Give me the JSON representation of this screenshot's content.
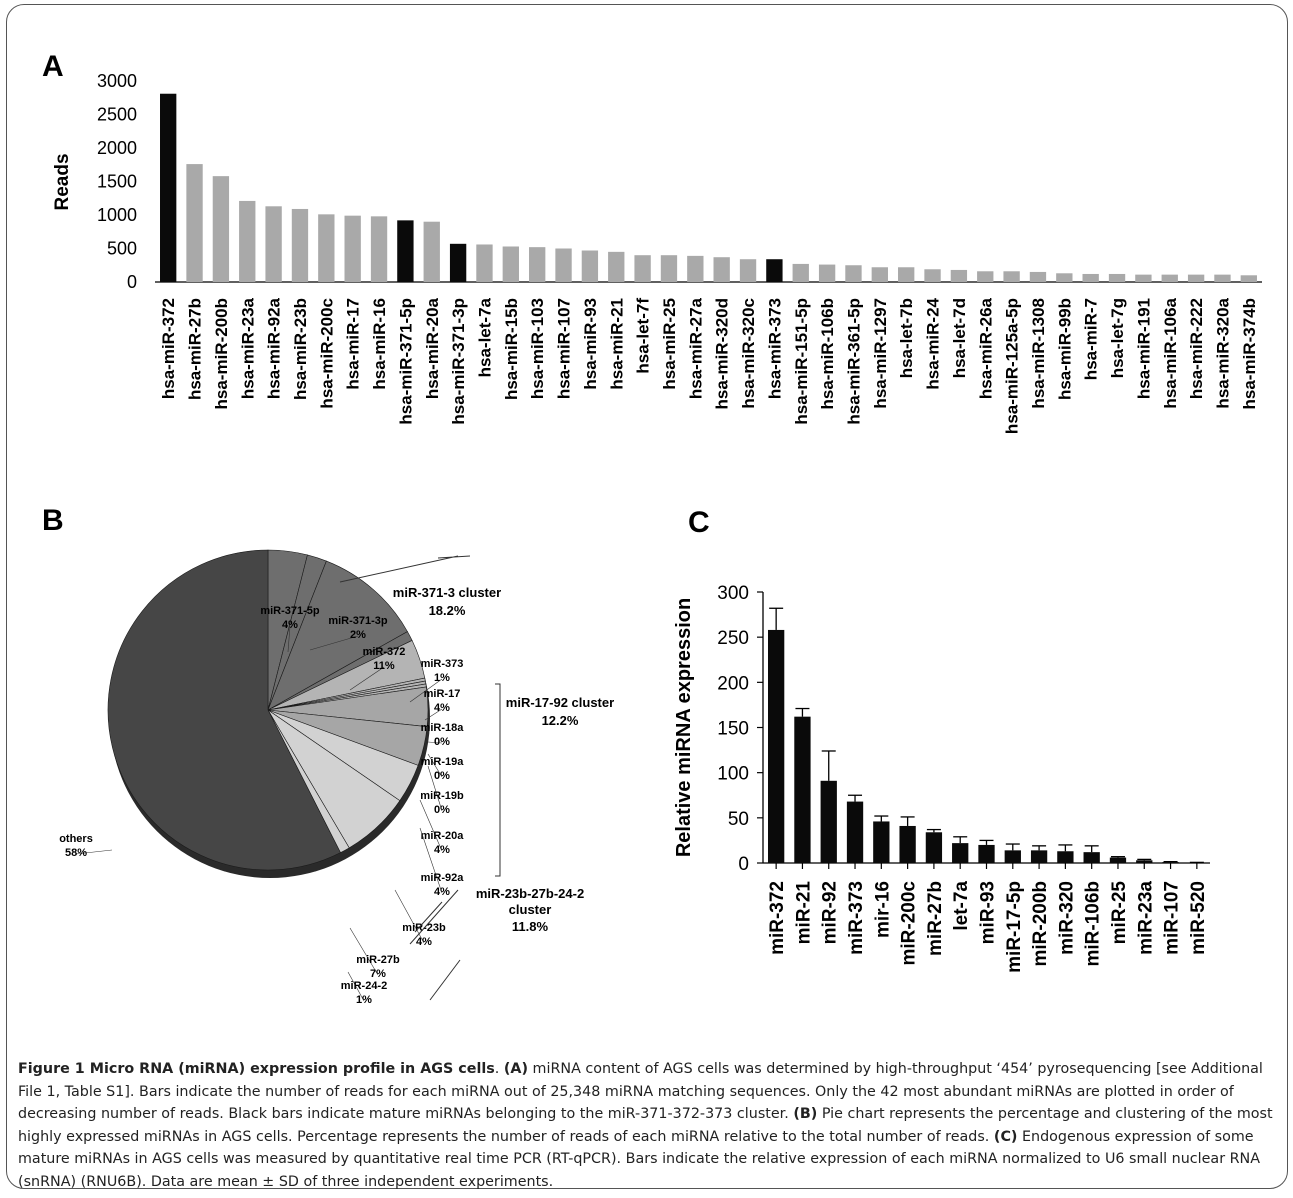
{
  "panels": {
    "a": "A",
    "b": "B",
    "c": "C"
  },
  "colors": {
    "black_bar": "#0a0a0a",
    "gray_bar": "#a9a9a9"
  },
  "chart_data": [
    {
      "type": "bar",
      "panel": "A",
      "ylabel": "Reads",
      "ylim": [
        0,
        3000
      ],
      "yticks": [
        "0",
        "500",
        "1000",
        "1500",
        "2000",
        "2500",
        "3000"
      ],
      "categories": [
        "hsa-miR-372",
        "hsa-miR-27b",
        "hsa-miR-200b",
        "hsa-miR-23a",
        "hsa-miR-92a",
        "hsa-miR-23b",
        "hsa-miR-200c",
        "hsa-miR-17",
        "hsa-miR-16",
        "hsa-miR-371-5p",
        "hsa-miR-20a",
        "hsa-miR-371-3p",
        "hsa-let-7a",
        "hsa-miR-15b",
        "hsa-miR-103",
        "hsa-miR-107",
        "hsa-miR-93",
        "hsa-miR-21",
        "hsa-let-7f",
        "hsa-miR-25",
        "hsa-miR-27a",
        "hsa-miR-320d",
        "hsa-miR-320c",
        "hsa-miR-373",
        "hsa-miR-151-5p",
        "hsa-miR-106b",
        "hsa-miR-361-5p",
        "hsa-miR-1297",
        "hsa-let-7b",
        "hsa-miR-24",
        "hsa-let-7d",
        "hsa-miR-26a",
        "hsa-miR-125a-5p",
        "hsa-miR-1308",
        "hsa-miR-99b",
        "hsa-miR-7",
        "hsa-let-7g",
        "hsa-miR-191",
        "hsa-miR-106a",
        "hsa-miR-222",
        "hsa-miR-320a",
        "hsa-miR-374b"
      ],
      "values": [
        2810,
        1760,
        1580,
        1210,
        1130,
        1090,
        1010,
        990,
        980,
        920,
        900,
        570,
        560,
        530,
        520,
        500,
        470,
        450,
        400,
        400,
        390,
        370,
        340,
        340,
        270,
        260,
        250,
        220,
        220,
        190,
        180,
        160,
        160,
        150,
        130,
        120,
        120,
        110,
        110,
        110,
        110,
        100
      ],
      "highlight": [
        0,
        9,
        11,
        23
      ]
    },
    {
      "type": "pie",
      "panel": "B",
      "slices": [
        {
          "label": "miR-371-5p",
          "pct": "4%",
          "value": 4
        },
        {
          "label": "miR-371-3p",
          "pct": "2%",
          "value": 2
        },
        {
          "label": "miR-372",
          "pct": "11%",
          "value": 11
        },
        {
          "label": "miR-373",
          "pct": "1%",
          "value": 1
        },
        {
          "label": "miR-17",
          "pct": "4%",
          "value": 4
        },
        {
          "label": "miR-18a",
          "pct": "0%",
          "value": 0.3
        },
        {
          "label": "miR-19a",
          "pct": "0%",
          "value": 0.3
        },
        {
          "label": "miR-19b",
          "pct": "0%",
          "value": 0.3
        },
        {
          "label": "miR-20a",
          "pct": "4%",
          "value": 4
        },
        {
          "label": "miR-92a",
          "pct": "4%",
          "value": 4
        },
        {
          "label": "miR-23b",
          "pct": "4%",
          "value": 4
        },
        {
          "label": "miR-27b",
          "pct": "7%",
          "value": 7
        },
        {
          "label": "miR-24-2",
          "pct": "1%",
          "value": 1
        },
        {
          "label": "others",
          "pct": "58%",
          "value": 58
        }
      ],
      "clusters": [
        {
          "name": "miR-371-3 cluster",
          "pct": "18.2%"
        },
        {
          "name": "miR-17-92 cluster",
          "pct": "12.2%"
        },
        {
          "name": "miR-23b-27b-24-2",
          "name2": "cluster",
          "pct": "11.8%"
        }
      ]
    },
    {
      "type": "bar",
      "panel": "C",
      "ylabel": "Relative miRNA expression",
      "ylim": [
        0,
        300
      ],
      "yticks": [
        "0",
        "50",
        "100",
        "150",
        "200",
        "250",
        "300"
      ],
      "categories": [
        "miR-372",
        "miR-21",
        "miR-92",
        "miR-373",
        "mir-16",
        "miR-200c",
        "miR-27b",
        "let-7a",
        "miR-93",
        "miR-17-5p",
        "miR-200b",
        "miR-320",
        "miR-106b",
        "miR-25",
        "miR-23a",
        "miR-107",
        "miR-520"
      ],
      "values": [
        258,
        162,
        91,
        68,
        46,
        41,
        34,
        22,
        20,
        14,
        14,
        13,
        12,
        6,
        3,
        1,
        0.5
      ],
      "errors": [
        24,
        9,
        33,
        7,
        6,
        10,
        3,
        7,
        5,
        7,
        5,
        7,
        7,
        1,
        1,
        0.5,
        0.2
      ]
    }
  ],
  "caption": {
    "figure_label": "Figure 1 Micro RNA (miRNA) expression profile in AGS cells",
    "text_1": ". ",
    "tag_a": "(A)",
    "text_a": " miRNA content of AGS cells was determined by high-throughput ‘454’ pyrosequencing [see Additional File 1, Table S1]. Bars indicate the number of reads for each miRNA out of 25,348 miRNA matching sequences. Only the 42 most abundant miRNAs are plotted in order of decreasing number of reads. Black bars indicate mature miRNAs belonging to the miR-371-372-373 cluster. ",
    "tag_b": "(B)",
    "text_b": " Pie chart represents the percentage and clustering of the most highly expressed miRNAs in AGS cells. Percentage represents the number of reads of each miRNA relative to the total number of reads. ",
    "tag_c": "(C)",
    "text_c": " Endogenous expression of some mature miRNAs in AGS cells was measured by quantitative real time PCR (RT-qPCR). Bars indicate the relative expression of each miRNA normalized to U6 small nuclear RNA (snRNA) (RNU6B). Data are mean ± SD of three independent experiments."
  }
}
